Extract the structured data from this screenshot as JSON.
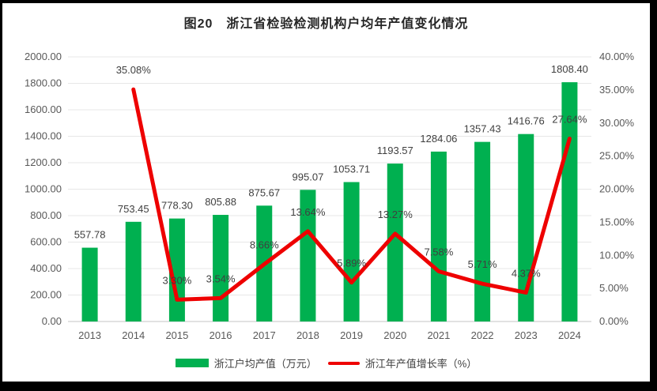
{
  "title": "图20　浙江省检验检测机构户均年产值变化情况",
  "legend": {
    "bar_series_label": "浙江户均产值（万元）",
    "line_series_label": "浙江年产值增长率（%）"
  },
  "colors": {
    "bar": "#00B050",
    "line": "#EE0000",
    "grid": "#E7E7E7",
    "baseline": "#C6C6C6",
    "axis_text": "#595959",
    "label_text": "#3F3F3F",
    "frame": "#000000"
  },
  "chart_data": {
    "type": "bar",
    "subtype": "combo bar+line, dual axis",
    "title": "图20　浙江省检验检测机构户均年产值变化情况",
    "categories": [
      "2013",
      "2014",
      "2015",
      "2016",
      "2017",
      "2018",
      "2019",
      "2020",
      "2021",
      "2022",
      "2023",
      "2024"
    ],
    "series": [
      {
        "name": "浙江户均产值（万元）",
        "type": "bar",
        "axis": "left",
        "values": [
          557.78,
          753.45,
          778.3,
          805.88,
          875.67,
          995.07,
          1053.71,
          1193.57,
          1284.06,
          1357.43,
          1416.76,
          1808.4
        ],
        "labels": [
          "557.78",
          "753.45",
          "778.30",
          "805.88",
          "875.67",
          "995.07",
          "1053.71",
          "1193.57",
          "1284.06",
          "1357.43",
          "1416.76",
          "1808.40"
        ]
      },
      {
        "name": "浙江年产值增长率（%）",
        "type": "line",
        "axis": "right",
        "values": [
          null,
          35.08,
          3.3,
          3.54,
          8.66,
          13.64,
          5.89,
          13.27,
          7.58,
          5.71,
          4.37,
          27.64
        ],
        "labels": [
          "",
          "35.08%",
          "3.30%",
          "3.54%",
          "8.66%",
          "13.64%",
          "5.89%",
          "13.27%",
          "7.58%",
          "5.71%",
          "4.37%",
          "27.64%"
        ]
      }
    ],
    "left_axis": {
      "min": 0,
      "max": 2000,
      "step": 200,
      "ticks": [
        "2000.00",
        "1800.00",
        "1600.00",
        "1400.00",
        "1200.00",
        "1000.00",
        "800.00",
        "600.00",
        "400.00",
        "200.00",
        "0.00"
      ]
    },
    "right_axis": {
      "min": 0,
      "max": 40,
      "step": 5,
      "ticks": [
        "40.00%",
        "35.00%",
        "30.00%",
        "25.00%",
        "20.00%",
        "15.00%",
        "10.00%",
        "5.00%",
        "0.00%"
      ]
    },
    "grid": true,
    "legend_position": "bottom"
  }
}
